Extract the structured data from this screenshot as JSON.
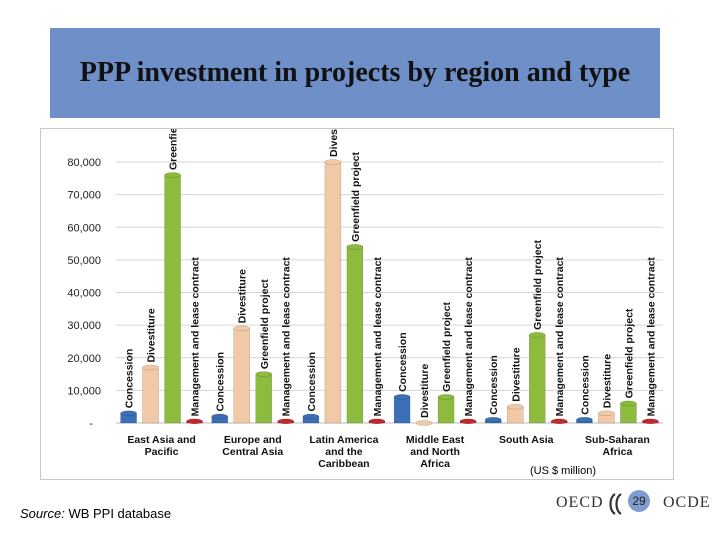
{
  "slide": {
    "title": "PPP investment in projects by region and type",
    "unit_note": "(US $ million)",
    "source_label": "Source:",
    "source_text": "WB PPI database",
    "page_number": "29",
    "footer_left": "OECD",
    "footer_right": "OCDE"
  },
  "colors": {
    "Concession": "#3b6fb6",
    "Divestiture": "#f2c9a6",
    "Greenfield project": "#8dbb3e",
    "Management and lease contract": "#c0282d",
    "title_bg": "#6f8fc9"
  },
  "chart_data": {
    "type": "bar",
    "title": "",
    "ylim": [
      0,
      80000
    ],
    "yticks": [
      "-",
      "10,000",
      "20,000",
      "30,000",
      "40,000",
      "50,000",
      "60,000",
      "70,000",
      "80,000"
    ],
    "grid": true,
    "legend": "none",
    "categories": [
      "East Asia and Pacific",
      "Europe and Central Asia",
      "Latin America and the Caribbean",
      "Middle East and North Africa",
      "South Asia",
      "Sub-Saharan Africa"
    ],
    "series": [
      {
        "name": "Concession",
        "values": [
          3000,
          2000,
          2000,
          8000,
          1000,
          1000
        ]
      },
      {
        "name": "Divestiture",
        "values": [
          17000,
          29000,
          80000,
          0,
          5000,
          3000
        ]
      },
      {
        "name": "Greenfield project",
        "values": [
          76000,
          15000,
          54000,
          8000,
          27000,
          6000
        ]
      },
      {
        "name": "Management and lease contract",
        "values": [
          500,
          500,
          500,
          500,
          500,
          500
        ]
      }
    ]
  }
}
